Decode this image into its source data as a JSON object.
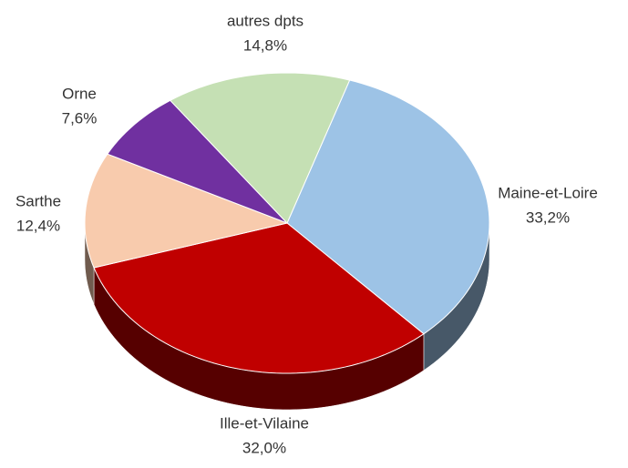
{
  "chart_data": {
    "type": "pie",
    "categories": [
      "Maine-et-Loire",
      "Ille-et-Vilaine",
      "Sarthe",
      "Orne",
      "autres dpts"
    ],
    "values": [
      33.2,
      32.0,
      12.4,
      7.6,
      14.8
    ],
    "value_labels": [
      "33,2%",
      "32,0%",
      "12,4%",
      "7,6%",
      "14,8%"
    ],
    "colors": [
      "#9dc3e6",
      "#c00000",
      "#f8cbad",
      "#7030a0",
      "#c5e0b4"
    ]
  }
}
